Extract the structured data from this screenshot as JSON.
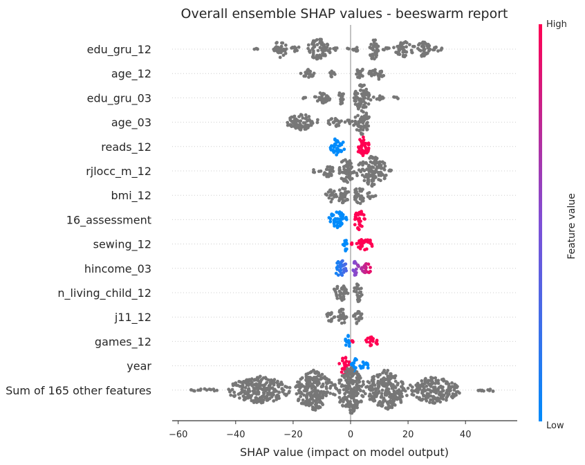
{
  "chart_data": {
    "type": "scatter",
    "title": "Overall ensemble SHAP values - beeswarm report",
    "xlabel": "SHAP value (impact on model output)",
    "xlim": [
      -62,
      58
    ],
    "xticks": [
      -60,
      -40,
      -20,
      0,
      20,
      40
    ],
    "grid": "horizontal dotted",
    "colorbar": {
      "label": "Feature value",
      "high_label": "High",
      "low_label": "Low",
      "high_color": "#ff0052",
      "low_color": "#008bfb",
      "mid_color": "#7e4fd6"
    },
    "features": [
      {
        "name": "edu_gru_12",
        "coloring": "none",
        "clusters": [
          [
            -34,
            -32,
            3
          ],
          [
            -27,
            -22,
            26
          ],
          [
            -21,
            -17,
            10
          ],
          [
            -15,
            -7,
            34
          ],
          [
            -6,
            -4,
            7
          ],
          [
            -2,
            6,
            6
          ],
          [
            6,
            10,
            34
          ],
          [
            11,
            15,
            6
          ],
          [
            15,
            22,
            24
          ],
          [
            22,
            28,
            24
          ],
          [
            28,
            33,
            7
          ]
        ]
      },
      {
        "name": "age_12",
        "coloring": "none",
        "clusters": [
          [
            -18,
            -12,
            12
          ],
          [
            -8,
            -5,
            12
          ],
          [
            2,
            5,
            20
          ],
          [
            5,
            8,
            10
          ],
          [
            7,
            12,
            18
          ]
        ]
      },
      {
        "name": "edu_gru_03",
        "coloring": "none",
        "clusters": [
          [
            -17,
            -15,
            3
          ],
          [
            -13,
            -6,
            18
          ],
          [
            -5,
            -2,
            20
          ],
          [
            1,
            7,
            42
          ],
          [
            8,
            12,
            10
          ],
          [
            14,
            17,
            4
          ]
        ]
      },
      {
        "name": "age_03",
        "coloring": "none",
        "clusters": [
          [
            -23,
            -11,
            24
          ],
          [
            -8,
            -3,
            14
          ],
          [
            -2,
            1,
            8
          ],
          [
            1,
            7,
            36
          ]
        ]
      },
      {
        "name": "reads_12",
        "coloring": "lowneg",
        "clusters": [
          [
            -7,
            -2,
            28
          ],
          [
            2,
            7,
            28
          ]
        ]
      },
      {
        "name": "rjlocc_m_12",
        "coloring": "none",
        "clusters": [
          [
            -14,
            -10,
            5
          ],
          [
            -10,
            -5,
            20
          ],
          [
            -5,
            2,
            36
          ],
          [
            2,
            13,
            44
          ],
          [
            13,
            15,
            3
          ]
        ]
      },
      {
        "name": "bmi_12",
        "coloring": "none",
        "clusters": [
          [
            -9,
            -5,
            20
          ],
          [
            -5,
            0,
            24
          ],
          [
            1,
            5,
            28
          ],
          [
            5,
            9,
            10
          ]
        ]
      },
      {
        "name": "16_assessment",
        "coloring": "lowneg",
        "clusters": [
          [
            -8,
            -1,
            26
          ],
          [
            1,
            5,
            30
          ]
        ]
      },
      {
        "name": "sewing_12",
        "coloring": "lowneg",
        "clusters": [
          [
            -3,
            -1,
            24
          ],
          [
            0,
            1,
            3
          ],
          [
            2,
            8,
            20
          ]
        ]
      },
      {
        "name": "hincome_03",
        "coloring": "gradient",
        "clusters": [
          [
            -6,
            -1,
            26
          ],
          [
            0,
            3,
            22
          ],
          [
            3,
            8,
            16
          ]
        ]
      },
      {
        "name": "n_living_child_12",
        "coloring": "none",
        "clusters": [
          [
            -6,
            -1,
            26
          ],
          [
            1,
            4,
            30
          ]
        ]
      },
      {
        "name": "j11_12",
        "coloring": "none",
        "clusters": [
          [
            -9,
            -5,
            14
          ],
          [
            -5,
            -1,
            24
          ],
          [
            1,
            4,
            24
          ]
        ]
      },
      {
        "name": "games_12",
        "coloring": "lowneg",
        "clusters": [
          [
            -2,
            0,
            20
          ],
          [
            0,
            1,
            3
          ],
          [
            5,
            10,
            14
          ]
        ]
      },
      {
        "name": "year",
        "coloring": "highneg",
        "clusters": [
          [
            -4,
            0,
            30
          ],
          [
            0,
            3,
            22
          ],
          [
            3,
            7,
            14
          ]
        ]
      },
      {
        "name": "Sum of 165 other features",
        "coloring": "none",
        "clusters": [
          [
            -57,
            -46,
            5
          ],
          [
            -43,
            -20,
            40
          ],
          [
            -20,
            -5,
            60
          ],
          [
            -5,
            5,
            70
          ],
          [
            5,
            20,
            60
          ],
          [
            20,
            38,
            40
          ],
          [
            42,
            53,
            4
          ]
        ]
      }
    ]
  }
}
